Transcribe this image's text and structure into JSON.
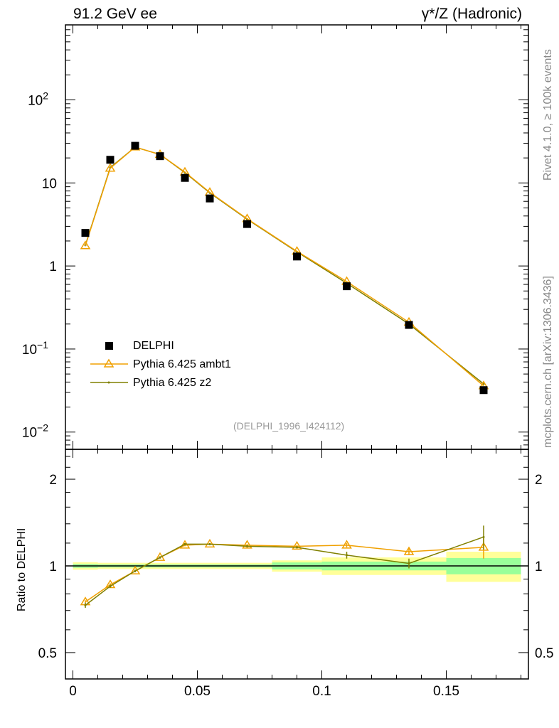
{
  "header": {
    "left": "91.2 GeV ee",
    "right": "γ*/Z (Hadronic)"
  },
  "side_labels": {
    "top": "Rivet 4.1.0, ≥ 100k events",
    "bottom": "mcplots.cern.ch [arXiv:1306.3436]"
  },
  "chart_data": [
    {
      "type": "line",
      "title": "",
      "annotation": "(DELPHI_1996_I424112)",
      "xlabel": "",
      "ylabel": "",
      "xlim": [
        -0.003,
        0.183
      ],
      "ylim": [
        0.0062,
        800
      ],
      "yscale": "log",
      "ytick_labels": [
        {
          "v": 0.01,
          "b": "10",
          "e": "−2"
        },
        {
          "v": 0.1,
          "b": "10",
          "e": "−1"
        },
        {
          "v": 1,
          "b": "1",
          "e": ""
        },
        {
          "v": 10,
          "b": "10",
          "e": ""
        },
        {
          "v": 100,
          "b": "10",
          "e": "2"
        }
      ],
      "legend_position": "lower-left",
      "x": [
        0.005,
        0.015,
        0.025,
        0.035,
        0.045,
        0.055,
        0.07,
        0.09,
        0.11,
        0.135,
        0.165
      ],
      "series": [
        {
          "name": "DELPHI",
          "color": "#000000",
          "marker": "square",
          "values": [
            2.5,
            19,
            28,
            21,
            11.5,
            6.5,
            3.2,
            1.3,
            0.57,
            0.195,
            0.032
          ]
        },
        {
          "name": "Pythia 6.425 ambt1",
          "color": "#f0a000",
          "marker": "triangle",
          "values": [
            1.75,
            15,
            27,
            22,
            13.5,
            7.7,
            3.7,
            1.5,
            0.65,
            0.21,
            0.036
          ]
        },
        {
          "name": "Pythia 6.425 z2",
          "color": "#808000",
          "marker": "dot",
          "values": [
            1.78,
            15.3,
            27,
            22,
            13.3,
            7.6,
            3.65,
            1.48,
            0.62,
            0.2,
            0.038
          ]
        }
      ]
    },
    {
      "type": "line",
      "ylabel": "Ratio to DELPHI",
      "xlim": [
        -0.003,
        0.183
      ],
      "ylim": [
        0.405,
        2.54
      ],
      "yscale": "log",
      "xtick_labels": [
        "0",
        "0.05",
        "0.1",
        "0.15"
      ],
      "xticks": [
        0,
        0.05,
        0.1,
        0.15
      ],
      "ytick_labels": [
        "0.5",
        "1",
        "2"
      ],
      "yticks": [
        0.5,
        1,
        2
      ],
      "bands": [
        {
          "x0": 0,
          "x1": 0.01,
          "stat": 0.015,
          "total": 0.03
        },
        {
          "x0": 0.01,
          "x1": 0.08,
          "stat": 0.012,
          "total": 0.025
        },
        {
          "x0": 0.08,
          "x1": 0.1,
          "stat": 0.028,
          "total": 0.045
        },
        {
          "x0": 0.1,
          "x1": 0.12,
          "stat": 0.035,
          "total": 0.07
        },
        {
          "x0": 0.12,
          "x1": 0.15,
          "stat": 0.035,
          "total": 0.07
        },
        {
          "x0": 0.15,
          "x1": 0.18,
          "stat": 0.065,
          "total": 0.12
        }
      ],
      "band_colors": {
        "stat": "#99ff99",
        "total": "#ffff99"
      },
      "x": [
        0.005,
        0.015,
        0.025,
        0.035,
        0.045,
        0.055,
        0.07,
        0.09,
        0.11,
        0.135,
        0.165
      ],
      "series": [
        {
          "name": "Pythia 6.425 ambt1",
          "color": "#f0a000",
          "values": [
            0.75,
            0.86,
            0.96,
            1.07,
            1.18,
            1.19,
            1.18,
            1.17,
            1.18,
            1.12,
            1.16
          ],
          "errors": [
            0.01,
            0.01,
            0.01,
            0.01,
            0.01,
            0.01,
            0.01,
            0.01,
            0.02,
            0.03,
            0.1
          ]
        },
        {
          "name": "Pythia 6.425 z2",
          "color": "#808000",
          "values": [
            0.73,
            0.85,
            0.96,
            1.07,
            1.19,
            1.19,
            1.17,
            1.16,
            1.09,
            1.02,
            1.26
          ],
          "errors": [
            0.015,
            0.01,
            0.01,
            0.01,
            0.01,
            0.01,
            0.01,
            0.01,
            0.03,
            0.04,
            0.12
          ]
        }
      ]
    }
  ]
}
